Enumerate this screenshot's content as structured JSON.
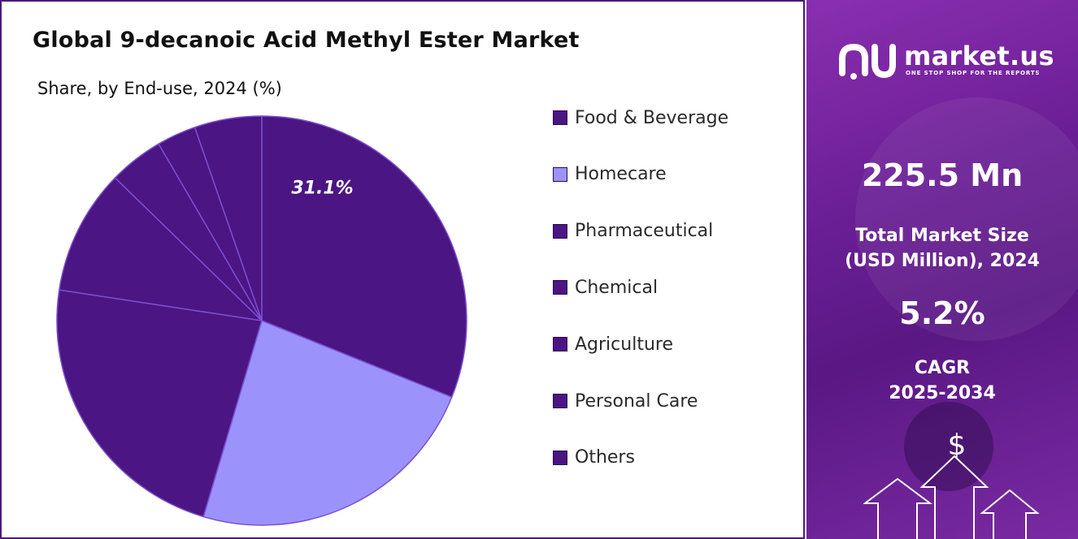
{
  "title": "Global 9-decanoic Acid Methyl Ester Market",
  "subtitle": "Share, by End-use, 2024 (%)",
  "chart_data": {
    "type": "pie",
    "categories": [
      "Food & Beverage",
      "Homecare",
      "Pharmaceutical",
      "Chemical",
      "Agriculture",
      "Personal Care",
      "Others"
    ],
    "values": [
      31.1,
      23.5,
      22.8,
      9.9,
      4.3,
      3.1,
      5.3
    ],
    "data_labels": [
      "31.1%",
      "",
      "",
      "",
      "",
      "",
      ""
    ],
    "colors": [
      "#4b1583",
      "#9b93fb",
      "#4b1583",
      "#4b1583",
      "#4b1583",
      "#4b1583",
      "#4b1583"
    ],
    "legend": [
      "Food & Beverage",
      "Homecare",
      "Pharmaceutical",
      "Chemical",
      "Agriculture",
      "Personal Care",
      "Others"
    ],
    "legend_position": "right",
    "slice_border_color": "#7a50d0",
    "start_angle_deg": 0,
    "direction": "clockwise"
  },
  "sidebar": {
    "logo_text": "market.us",
    "logo_tagline": "ONE STOP SHOP FOR THE REPORTS",
    "market_size_value": "225.5 Mn",
    "market_size_label_line1": "Total Market Size",
    "market_size_label_line2": "(USD Million), 2024",
    "cagr_value": "5.2%",
    "cagr_label_line1": "CAGR",
    "cagr_label_line2": "2025-2034",
    "dollar_symbol": "$",
    "bg_color_top": "#8a2fb0",
    "bg_color_bottom": "#5a1884"
  }
}
